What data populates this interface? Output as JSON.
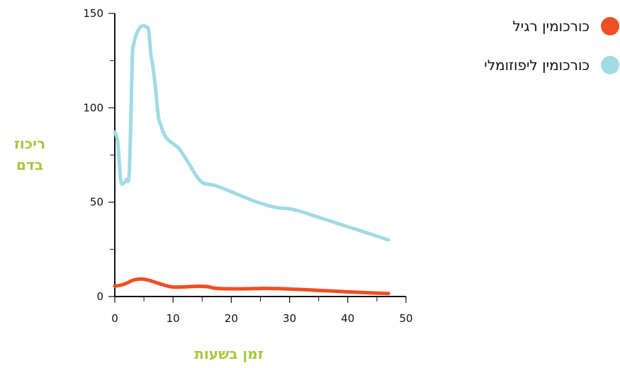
{
  "chart_data": {
    "type": "line",
    "xlabel": "זמן בשעות",
    "ylabel_lines": [
      "ריכוז",
      "בדם"
    ],
    "xlim": [
      0,
      50
    ],
    "ylim": [
      0,
      150
    ],
    "x_ticks": [
      0,
      10,
      20,
      30,
      40,
      50
    ],
    "x_tick_labels": [
      "0",
      "10",
      "20",
      "30",
      "40",
      "50"
    ],
    "y_ticks": [
      0,
      50,
      100,
      150
    ],
    "y_tick_labels": [
      "0",
      "50",
      "100",
      "150"
    ],
    "x_minor_ticks": [
      5,
      15,
      25,
      35,
      45
    ],
    "y_minor_ticks": [
      25,
      75,
      125
    ],
    "grid": false,
    "legend_position": "top-right",
    "series": [
      {
        "name": "כורכומין רגיל",
        "color": "#f04e23",
        "x": [
          0,
          1,
          2,
          3,
          4,
          5,
          6,
          7,
          8,
          9,
          10,
          11,
          12,
          13,
          14,
          15,
          16,
          17,
          18,
          20,
          22,
          24,
          26,
          28,
          30,
          32,
          34,
          36,
          38,
          40,
          42,
          44,
          46,
          47
        ],
        "y": [
          5.5,
          6,
          7,
          8.5,
          9.2,
          9.2,
          8.5,
          7.5,
          6.5,
          5.6,
          5,
          5,
          5.1,
          5.3,
          5.4,
          5.4,
          5.2,
          4.5,
          4.2,
          4.1,
          4.1,
          4.2,
          4.3,
          4.2,
          4.0,
          3.7,
          3.4,
          3.1,
          2.8,
          2.5,
          2.2,
          1.9,
          1.7,
          1.6
        ]
      },
      {
        "name": "כורכומין ליפוזומלי",
        "color": "#a1dbe3",
        "x": [
          0,
          0.5,
          1,
          1.5,
          2,
          2.5,
          3,
          3.2,
          3.7,
          4.2,
          4.8,
          5.3,
          5.8,
          6.2,
          6.5,
          7,
          7.5,
          8,
          8.3,
          9,
          10,
          11,
          12,
          13,
          14,
          15,
          16,
          17,
          18,
          20,
          22,
          24,
          26,
          28,
          30,
          32,
          34,
          36,
          38,
          40,
          42,
          44,
          46,
          47
        ],
        "y": [
          87,
          82,
          62,
          60,
          62,
          67,
          125,
          133,
          139,
          142,
          143.5,
          143,
          141,
          128,
          123,
          110,
          95,
          90,
          87,
          83.5,
          81,
          78.5,
          74,
          69,
          64,
          60.5,
          59.5,
          59,
          58,
          55.5,
          53,
          50.5,
          48.5,
          47,
          46.5,
          45,
          43,
          41,
          39,
          37,
          35,
          33,
          31,
          30
        ]
      }
    ]
  }
}
